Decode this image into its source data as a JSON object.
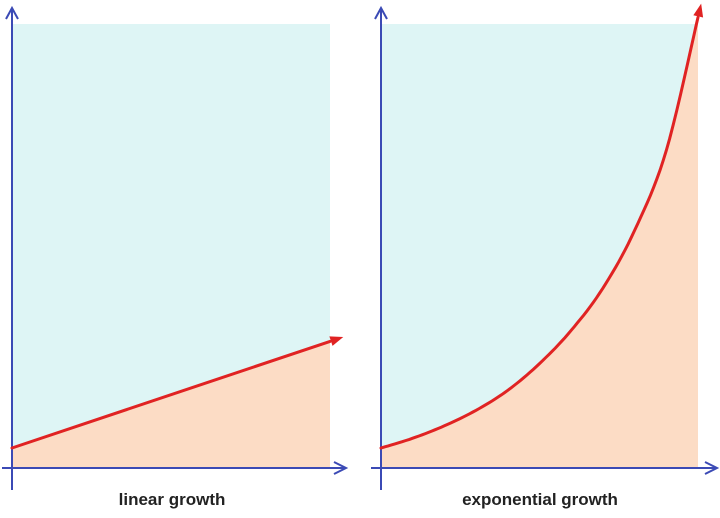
{
  "chart_data": [
    {
      "type": "area",
      "title": "linear growth",
      "x": [
        0,
        1
      ],
      "series": [
        {
          "values": [
            0.0,
            0.24
          ]
        }
      ],
      "xlim": [
        0,
        1
      ],
      "ylim": [
        -0.06,
        1.0
      ],
      "colors": {
        "sky": "#def5f5",
        "fill": "#fcdcc5",
        "curve": "#e02323",
        "axis": "#3b4ab5"
      }
    },
    {
      "type": "area",
      "title": "exponential growth",
      "x": [
        0,
        0.1,
        0.2,
        0.3,
        0.4,
        0.5,
        0.6,
        0.7,
        0.8,
        0.9,
        1.0
      ],
      "series": [
        {
          "values": [
            0.0,
            0.022,
            0.05,
            0.085,
            0.13,
            0.19,
            0.265,
            0.36,
            0.49,
            0.67,
            0.97
          ]
        }
      ],
      "xlim": [
        0,
        1
      ],
      "ylim": [
        -0.06,
        1.0
      ],
      "colors": {
        "sky": "#def5f5",
        "fill": "#fcdcc5",
        "curve": "#e02323",
        "axis": "#3b4ab5"
      }
    }
  ]
}
